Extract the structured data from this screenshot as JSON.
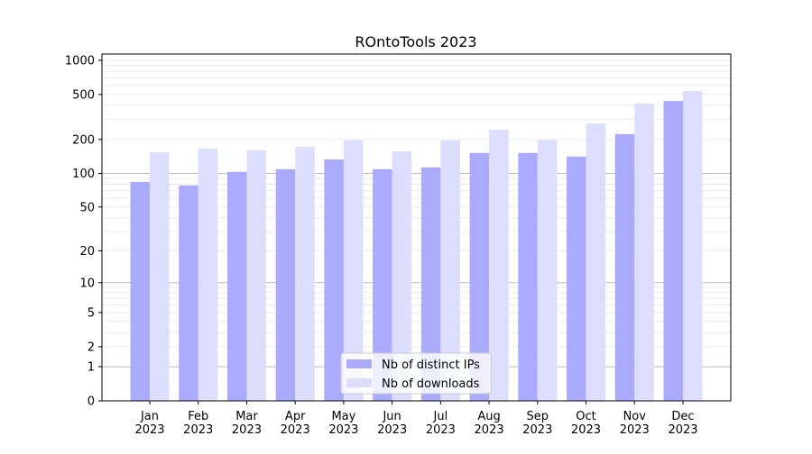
{
  "chart_data": {
    "type": "bar",
    "title": "ROntoTools 2023",
    "xlabel": "",
    "ylabel": "",
    "yscale": "log10(y+1)",
    "ylim": [
      0,
      1136
    ],
    "yticks": [
      0,
      1,
      2,
      5,
      10,
      20,
      50,
      100,
      200,
      500,
      1000
    ],
    "grid": true,
    "legend_position": "lower-center",
    "categories": [
      "Jan\n2023",
      "Feb\n2023",
      "Mar\n2023",
      "Apr\n2023",
      "May\n2023",
      "Jun\n2023",
      "Jul\n2023",
      "Aug\n2023",
      "Sep\n2023",
      "Oct\n2023",
      "Nov\n2023",
      "Dec\n2023"
    ],
    "series": [
      {
        "name": "Nb of distinct IPs",
        "color": "#aaaaff",
        "values": [
          84,
          78,
          103,
          109,
          133,
          109,
          113,
          152,
          152,
          141,
          223,
          438
        ]
      },
      {
        "name": "Nb of downloads",
        "color": "#ddddff",
        "values": [
          154,
          166,
          160,
          172,
          196,
          157,
          196,
          244,
          196,
          277,
          415,
          536
        ]
      }
    ]
  }
}
